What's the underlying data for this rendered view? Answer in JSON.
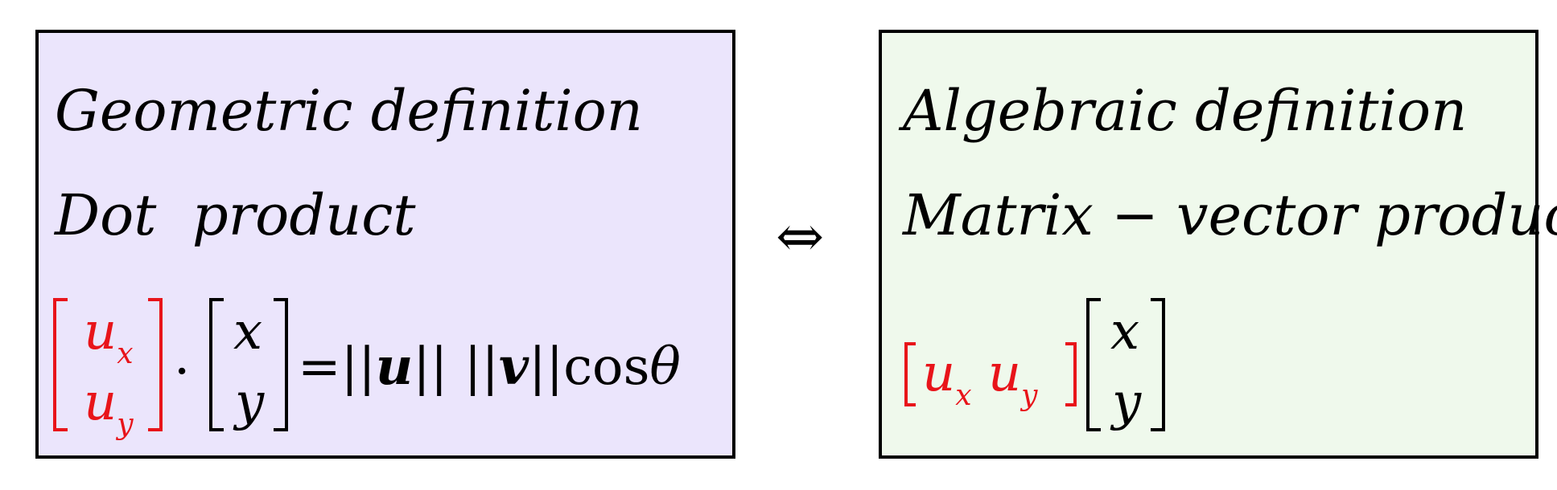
{
  "left": {
    "title1": "Geometric definition",
    "title2": "Dot  product",
    "vec_u": {
      "top": "u",
      "top_sub": "x",
      "bottom": "u",
      "bottom_sub": "y"
    },
    "dot": "·",
    "vec_v": {
      "top": "x",
      "bottom": "y"
    },
    "equals": "=",
    "norm_u_left": "||",
    "u": "u",
    "norm_u_right": "||",
    "norm_v_left": "||",
    "v": "v",
    "norm_v_right": "||",
    "cos": "cos",
    "theta": "θ"
  },
  "iff": "⇔",
  "right": {
    "title1": "Algebraic definition",
    "title2": "Matrix − vector product",
    "row_u1": "u",
    "row_u1_sub": "x",
    "row_u2": "u",
    "row_u2_sub": "y",
    "vec_v": {
      "top": "x",
      "bottom": "y"
    }
  },
  "colors": {
    "left_bg": "#ebe5fc",
    "right_bg": "#eff9ec",
    "accent": "#e8141a"
  }
}
